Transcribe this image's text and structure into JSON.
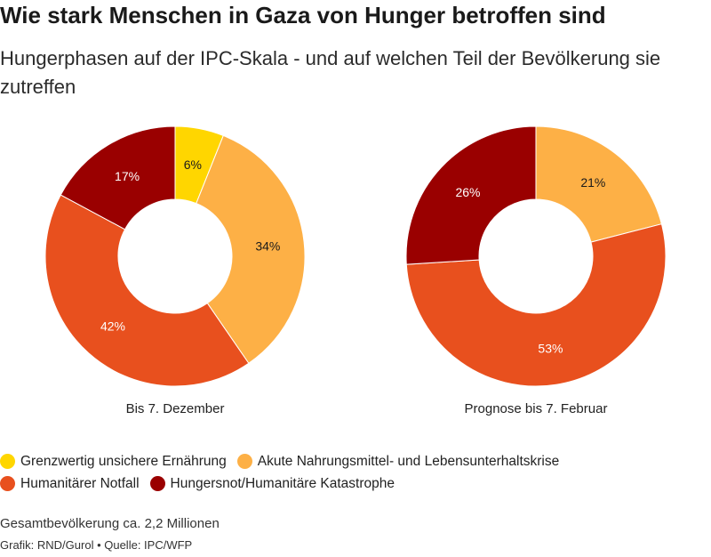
{
  "title": "Wie stark Menschen in Gaza von Hunger betroffen sind",
  "subtitle": "Hungerphasen auf der IPC-Skala - und auf welchen Teil der Bevölkerung sie zutreffen",
  "chart_data": [
    {
      "type": "pie",
      "variant": "donut",
      "caption": "Bis 7. Dezember",
      "slices": [
        {
          "label": "Grenzwertig unsichere Ernährung",
          "value": 6,
          "text": "6%",
          "color": "#ffd600"
        },
        {
          "label": "Akute Nahrungsmittel- und Lebensunterhaltskrise",
          "value": 34,
          "text": "34%",
          "color": "#fdb046"
        },
        {
          "label": "Humanitärer Notfall",
          "value": 42,
          "text": "42%",
          "color": "#e8501e"
        },
        {
          "label": "Hungersnot/Humanitäre Katastrophe",
          "value": 17,
          "text": "17%",
          "color": "#9a0000"
        }
      ]
    },
    {
      "type": "pie",
      "variant": "donut",
      "caption": "Prognose bis 7. Februar",
      "slices": [
        {
          "label": "Akute Nahrungsmittel- und Lebensunterhaltskrise",
          "value": 21,
          "text": "21%",
          "color": "#fdb046"
        },
        {
          "label": "Humanitärer Notfall",
          "value": 53,
          "text": "53%",
          "color": "#e8501e"
        },
        {
          "label": "Hungersnot/Humanitäre Katastrophe",
          "value": 26,
          "text": "26%",
          "color": "#9a0000"
        }
      ]
    }
  ],
  "legend": [
    {
      "label": "Grenzwertig unsichere Ernährung",
      "color": "#ffd600"
    },
    {
      "label": "Akute Nahrungsmittel- und Lebensunterhaltskrise",
      "color": "#fdb046"
    },
    {
      "label": "Humanitärer Notfall",
      "color": "#e8501e"
    },
    {
      "label": "Hungersnot/Humanitäre Katastrophe",
      "color": "#9a0000"
    }
  ],
  "note": "Gesamtbevölkerung ca. 2,2 Millionen",
  "source": "Grafik: RND/Gurol • Quelle: IPC/WFP"
}
